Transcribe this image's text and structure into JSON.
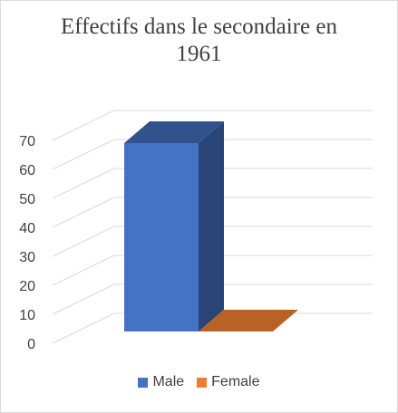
{
  "chart_data": {
    "type": "bar",
    "title": "Effectifs dans le secondaire en 1961",
    "categories": [
      ""
    ],
    "series": [
      {
        "name": "Male",
        "values": [
          66
        ],
        "color": "#4472c4"
      },
      {
        "name": "Female",
        "values": [
          0
        ],
        "color": "#ed7d31"
      }
    ],
    "xlabel": "",
    "ylabel": "",
    "ylim": [
      0,
      70
    ],
    "yticks": [
      0,
      10,
      20,
      30,
      40,
      50,
      60,
      70
    ],
    "grid": true,
    "legend_position": "bottom"
  }
}
